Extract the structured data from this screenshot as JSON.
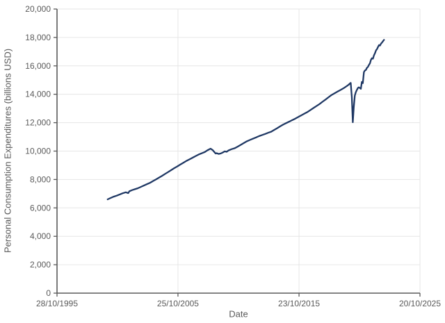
{
  "chart_data": {
    "type": "line",
    "title": "",
    "xlabel": "Date",
    "ylabel": "Personal Consumption Expenditures (billions USD)",
    "legend": "none",
    "grid": {
      "horizontal": true,
      "vertical": true
    },
    "colors": {
      "line": "#1f3864",
      "axis": "#595959",
      "grid": "#e6e6e6",
      "text": "#595959",
      "background": "#ffffff"
    },
    "x_axis": {
      "min": 1995.82,
      "max": 2025.8,
      "ticks": [
        {
          "label": "28/10/1995",
          "x": 1995.82
        },
        {
          "label": "25/10/2005",
          "x": 2005.81
        },
        {
          "label": "23/10/2015",
          "x": 2015.81
        },
        {
          "label": "20/10/2025",
          "x": 2025.8
        }
      ]
    },
    "y_axis": {
      "min": 0,
      "max": 20000,
      "step": 2000,
      "ticks": [
        {
          "label": "0",
          "value": 0
        },
        {
          "label": "2,000",
          "value": 2000
        },
        {
          "label": "4,000",
          "value": 4000
        },
        {
          "label": "6,000",
          "value": 6000
        },
        {
          "label": "8,000",
          "value": 8000
        },
        {
          "label": "10,000",
          "value": 10000
        },
        {
          "label": "12,000",
          "value": 12000
        },
        {
          "label": "14,000",
          "value": 14000
        },
        {
          "label": "16,000",
          "value": 16000
        },
        {
          "label": "18,000",
          "value": 18000
        },
        {
          "label": "20,000",
          "value": 20000
        }
      ]
    },
    "series": [
      {
        "name": "Personal Consumption Expenditures",
        "x": [
          2000.0,
          2000.25,
          2000.5,
          2000.75,
          2001.0,
          2001.25,
          2001.5,
          2001.7,
          2001.8,
          2002.0,
          2002.25,
          2002.5,
          2002.75,
          2003.0,
          2003.25,
          2003.5,
          2003.75,
          2004.0,
          2004.25,
          2004.5,
          2004.75,
          2005.0,
          2005.25,
          2005.5,
          2005.75,
          2006.0,
          2006.25,
          2006.5,
          2006.75,
          2007.0,
          2007.25,
          2007.5,
          2007.75,
          2008.0,
          2008.25,
          2008.5,
          2008.67,
          2008.92,
          2009.0,
          2009.17,
          2009.33,
          2009.5,
          2009.67,
          2009.83,
          2010.0,
          2010.25,
          2010.5,
          2010.75,
          2011.0,
          2011.25,
          2011.5,
          2011.75,
          2012.0,
          2012.25,
          2012.5,
          2012.75,
          2013.0,
          2013.25,
          2013.5,
          2013.75,
          2014.0,
          2014.25,
          2014.5,
          2014.75,
          2015.0,
          2015.25,
          2015.5,
          2015.75,
          2016.0,
          2016.25,
          2016.5,
          2016.75,
          2017.0,
          2017.25,
          2017.5,
          2017.75,
          2018.0,
          2018.25,
          2018.5,
          2018.75,
          2019.0,
          2019.25,
          2019.5,
          2019.75,
          2019.92,
          2020.0,
          2020.08,
          2020.17,
          2020.25,
          2020.33,
          2020.42,
          2020.5,
          2020.58,
          2020.67,
          2020.75,
          2020.83,
          2020.92,
          2021.0,
          2021.08,
          2021.17,
          2021.25,
          2021.33,
          2021.42,
          2021.5,
          2021.58,
          2021.67,
          2021.75,
          2021.83,
          2021.92,
          2022.0,
          2022.08,
          2022.17,
          2022.25,
          2022.33,
          2022.42,
          2022.5,
          2022.58,
          2022.67,
          2022.75,
          2022.83
        ],
        "y": [
          6600,
          6700,
          6790,
          6860,
          6950,
          7030,
          7100,
          7040,
          7175,
          7245,
          7315,
          7385,
          7480,
          7575,
          7670,
          7765,
          7890,
          8010,
          8135,
          8260,
          8395,
          8525,
          8660,
          8795,
          8920,
          9050,
          9175,
          9305,
          9415,
          9525,
          9640,
          9750,
          9840,
          9920,
          10060,
          10170,
          10080,
          9830,
          9855,
          9800,
          9830,
          9890,
          9980,
          9950,
          10055,
          10135,
          10200,
          10320,
          10440,
          10565,
          10690,
          10780,
          10870,
          10960,
          11050,
          11130,
          11205,
          11285,
          11360,
          11485,
          11610,
          11740,
          11865,
          11970,
          12075,
          12180,
          12285,
          12400,
          12520,
          12635,
          12750,
          12890,
          13030,
          13170,
          13310,
          13470,
          13630,
          13790,
          13950,
          14070,
          14190,
          14310,
          14430,
          14575,
          14680,
          14750,
          14800,
          13800,
          12030,
          13090,
          13900,
          14140,
          14290,
          14440,
          14490,
          14440,
          14380,
          14870,
          14780,
          15560,
          15670,
          15710,
          15860,
          15920,
          16060,
          16180,
          16420,
          16540,
          16510,
          16740,
          16880,
          17090,
          17180,
          17320,
          17460,
          17430,
          17560,
          17650,
          17740,
          17830
        ]
      }
    ]
  }
}
